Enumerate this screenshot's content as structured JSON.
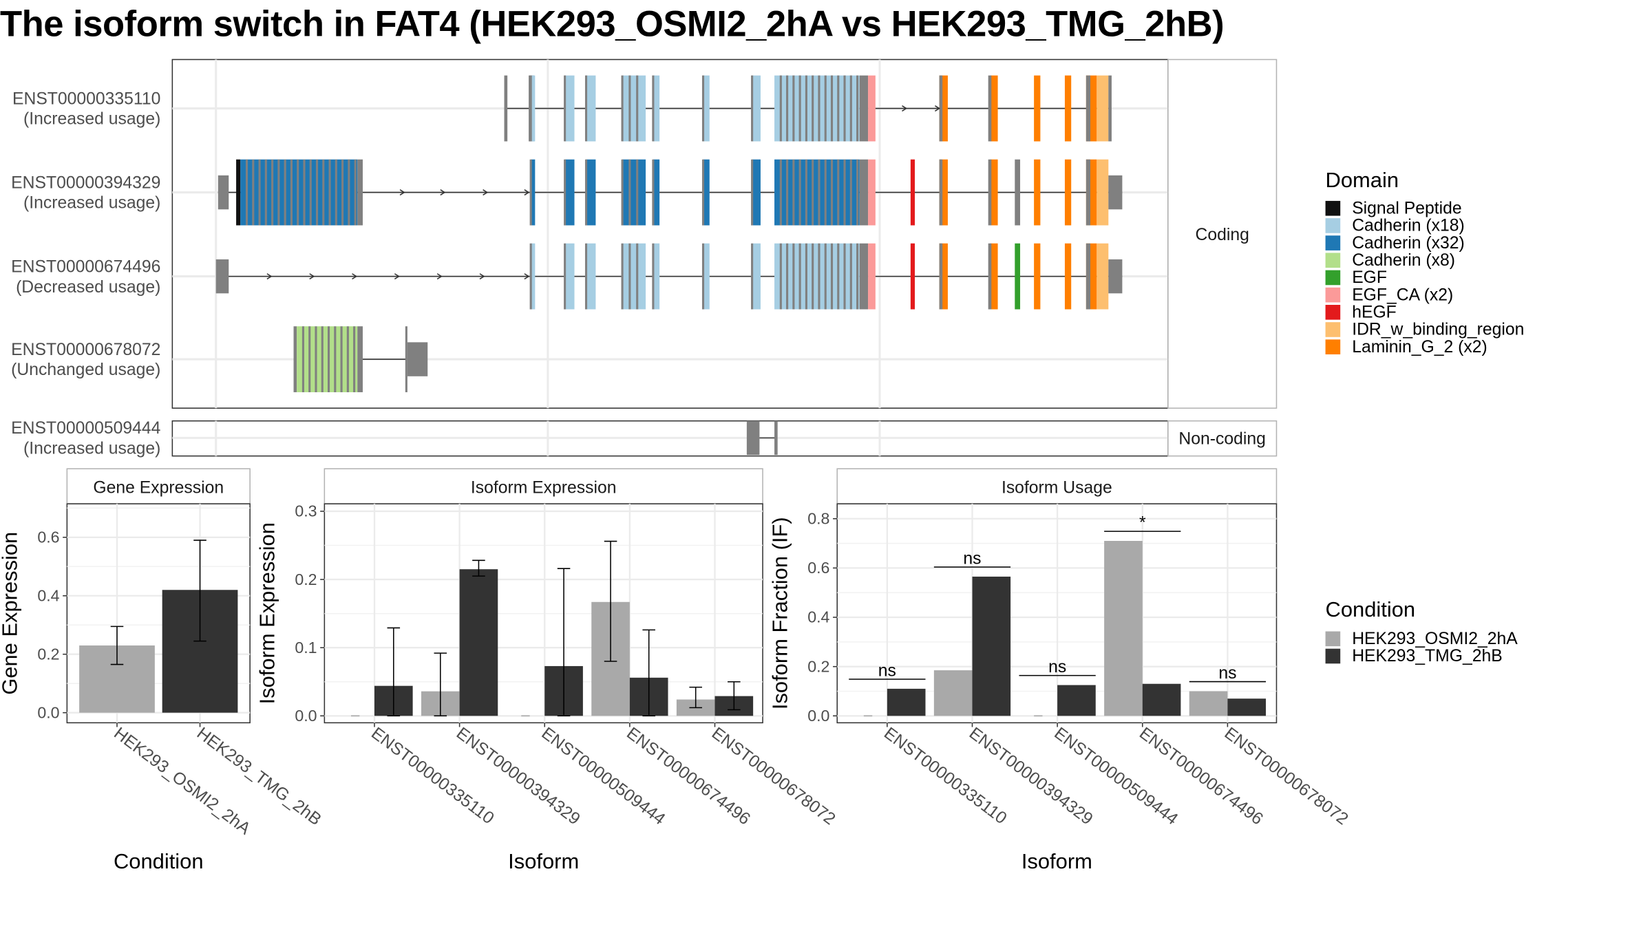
{
  "title": "The isoform switch in FAT4 (HEK293_OSMI2_2hA vs HEK293_TMG_2hB)",
  "structure": {
    "coding_label": "Coding",
    "noncoding_label": "Non-coding",
    "transcripts": [
      {
        "id": "ENST00000335110",
        "usage": "(Increased usage)",
        "group": "coding"
      },
      {
        "id": "ENST00000394329",
        "usage": "(Increased usage)",
        "group": "coding"
      },
      {
        "id": "ENST00000674496",
        "usage": "(Decreased usage)",
        "group": "coding"
      },
      {
        "id": "ENST00000678072",
        "usage": "(Unchanged usage)",
        "group": "coding"
      },
      {
        "id": "ENST00000509444",
        "usage": "(Increased usage)",
        "group": "noncoding"
      }
    ]
  },
  "domain_legend": {
    "title": "Domain",
    "items": [
      {
        "label": "Signal Peptide",
        "color": "#111111"
      },
      {
        "label": "Cadherin (x18)",
        "color": "#a6cee3"
      },
      {
        "label": "Cadherin (x32)",
        "color": "#1f78b4"
      },
      {
        "label": "Cadherin (x8)",
        "color": "#b2df8a"
      },
      {
        "label": "EGF",
        "color": "#33a02c"
      },
      {
        "label": "EGF_CA (x2)",
        "color": "#fb9a99"
      },
      {
        "label": "hEGF",
        "color": "#e31a1c"
      },
      {
        "label": "IDR_w_binding_region",
        "color": "#fdbf6f"
      },
      {
        "label": "Laminin_G_2 (x2)",
        "color": "#ff7f00"
      }
    ]
  },
  "condition_legend": {
    "title": "Condition",
    "items": [
      {
        "label": "HEK293_OSMI2_2hA",
        "color": "#a9a9a9"
      },
      {
        "label": "HEK293_TMG_2hB",
        "color": "#333333"
      }
    ]
  },
  "chart_data": [
    {
      "type": "bar",
      "title": "Gene Expression",
      "xlabel": "Condition",
      "ylabel": "Gene Expression",
      "ylim": [
        0,
        0.7
      ],
      "yticks": [
        "0.0",
        "0.2",
        "0.4",
        "0.6"
      ],
      "categories": [
        "HEK293_OSMI2_2hA",
        "HEK293_TMG_2hB"
      ],
      "values": [
        0.23,
        0.42
      ],
      "err_low": [
        0.165,
        0.245
      ],
      "err_high": [
        0.295,
        0.59
      ]
    },
    {
      "type": "bar",
      "title": "Isoform Expression",
      "xlabel": "Isoform",
      "ylabel": "Isoform Expression",
      "ylim": [
        0,
        0.3
      ],
      "yticks": [
        "0.0",
        "0.1",
        "0.2",
        "0.3"
      ],
      "categories": [
        "ENST00000335110",
        "ENST00000394329",
        "ENST00000509444",
        "ENST00000674496",
        "ENST00000678072"
      ],
      "series": [
        {
          "name": "HEK293_OSMI2_2hA",
          "values": [
            0.0,
            0.036,
            0.0,
            0.167,
            0.024
          ],
          "err_low": [
            0.0,
            0.0,
            0.0,
            0.08,
            0.012
          ],
          "err_high": [
            0.0,
            0.092,
            0.0,
            0.256,
            0.042
          ]
        },
        {
          "name": "HEK293_TMG_2hB",
          "values": [
            0.044,
            0.215,
            0.073,
            0.056,
            0.029
          ],
          "err_low": [
            0.0,
            0.205,
            0.0,
            0.0,
            0.009
          ],
          "err_high": [
            0.129,
            0.228,
            0.216,
            0.126,
            0.05
          ]
        }
      ]
    },
    {
      "type": "bar",
      "title": "Isoform Usage",
      "xlabel": "Isoform",
      "ylabel": "Isoform Fraction (IF)",
      "ylim": [
        0,
        0.83
      ],
      "yticks": [
        "0.0",
        "0.2",
        "0.4",
        "0.6",
        "0.8"
      ],
      "categories": [
        "ENST00000335110",
        "ENST00000394329",
        "ENST00000509444",
        "ENST00000674496",
        "ENST00000678072"
      ],
      "series": [
        {
          "name": "HEK293_OSMI2_2hA",
          "values": [
            0.0,
            0.185,
            0.0,
            0.71,
            0.1
          ]
        },
        {
          "name": "HEK293_TMG_2hB",
          "values": [
            0.11,
            0.565,
            0.125,
            0.13,
            0.07
          ]
        }
      ],
      "significance": [
        "ns",
        "ns",
        "ns",
        "*",
        "ns"
      ]
    }
  ]
}
